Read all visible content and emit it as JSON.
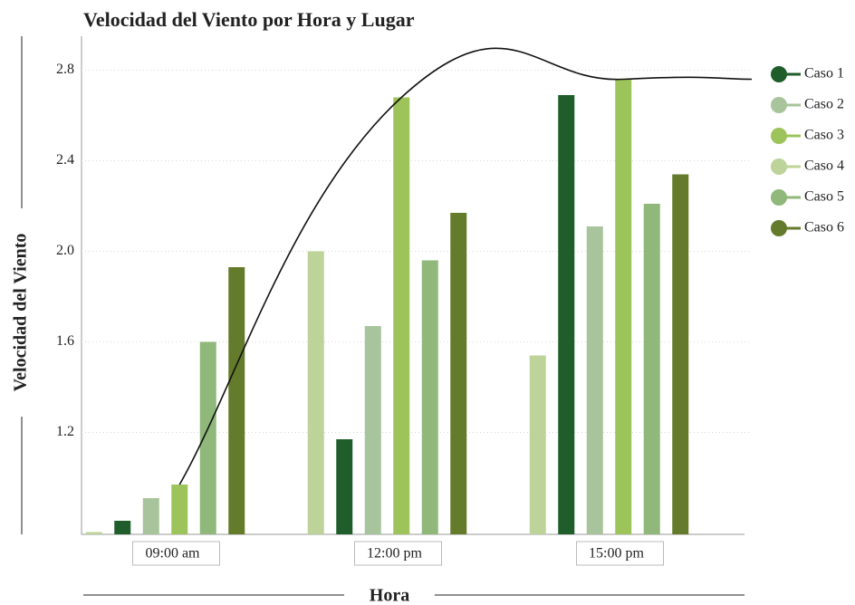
{
  "chart_data": {
    "type": "bar",
    "title": "Velocidad del Viento por Hora y Lugar",
    "x_label": "Hora",
    "y_label": "Velocidad del Viento",
    "categories": [
      "09:00 am",
      "12:00 pm",
      "15:00 pm"
    ],
    "series": [
      {
        "name": "Caso 1",
        "color": "#1f5e2a",
        "values": [
          0.81,
          1.17,
          2.69
        ]
      },
      {
        "name": "Caso 2",
        "color": "#a8c49c",
        "values": [
          0.91,
          1.67,
          2.11
        ]
      },
      {
        "name": "Caso 3",
        "color": "#9dc45a",
        "values": [
          0.97,
          2.68,
          2.76
        ]
      },
      {
        "name": "Caso 4",
        "color": "#bdd39a",
        "values": [
          0.76,
          2.0,
          1.54
        ]
      },
      {
        "name": "Caso 5",
        "color": "#8fb87a",
        "values": [
          1.6,
          1.96,
          2.21
        ]
      },
      {
        "name": "Caso 6",
        "color": "#657b2c",
        "values": [
          1.93,
          2.17,
          2.34
        ]
      }
    ],
    "ylim": [
      0.75,
      2.95
    ],
    "yticks": [
      1.2,
      1.6,
      {
        "value": 2,
        "label": "2.0"
      },
      2.4,
      2.8
    ],
    "grid": true,
    "legend": "right"
  }
}
